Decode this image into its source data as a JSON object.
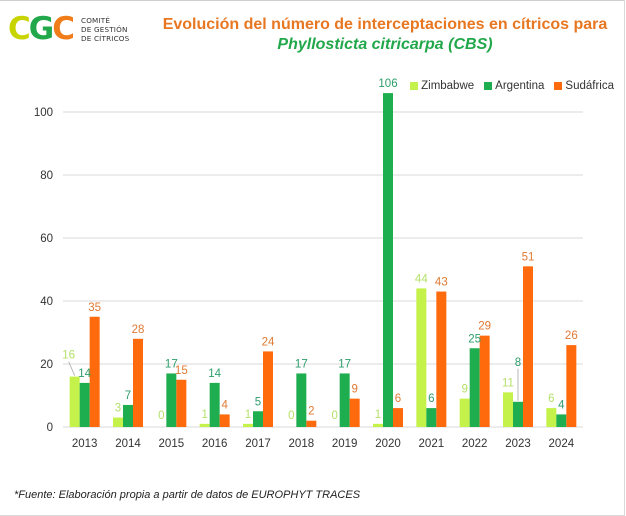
{
  "logo": {
    "letters": [
      "C",
      "G",
      "C"
    ],
    "letter_colors": [
      "#c8d400",
      "#22a84a",
      "#f07d1a"
    ],
    "text_lines": [
      "COMITÉ",
      "DE GESTIÓN",
      "DE CÍTRICOS"
    ]
  },
  "header": {
    "title_line1": "Evolución del número de interceptaciones en cítricos para",
    "title_line2": "Phyllosticta citricarpa (CBS)"
  },
  "footnote": "*Fuente: Elaboración propia a partir de datos de EUROPHYT TRACES",
  "chart_data": {
    "type": "bar",
    "title": "Evolución del número de interceptaciones en cítricos para Phyllosticta citricarpa (CBS)",
    "xlabel": "",
    "ylabel": "",
    "categories": [
      "2013",
      "2014",
      "2015",
      "2016",
      "2017",
      "2018",
      "2019",
      "2020",
      "2021",
      "2022",
      "2023",
      "2024"
    ],
    "series": [
      {
        "name": "Zimbabwe",
        "color": "#c5f24a",
        "label_color": "#b5e06a",
        "values": [
          16,
          3,
          0,
          1,
          1,
          0,
          0,
          1,
          44,
          9,
          11,
          6
        ]
      },
      {
        "name": "Argentina",
        "color": "#1fae4f",
        "label_color": "#2e9e6b",
        "values": [
          14,
          7,
          17,
          14,
          5,
          17,
          17,
          106,
          6,
          25,
          8,
          4
        ]
      },
      {
        "name": "Sudáfrica",
        "color": "#ff6a0c",
        "label_color": "#e07a33",
        "values": [
          35,
          28,
          15,
          4,
          24,
          2,
          9,
          6,
          43,
          29,
          51,
          26
        ]
      }
    ],
    "yticks": [
      0,
      20,
      40,
      60,
      80,
      100
    ],
    "ylim": [
      0,
      106
    ],
    "grid": true,
    "legend_position": "top-right",
    "data_labels": true
  }
}
